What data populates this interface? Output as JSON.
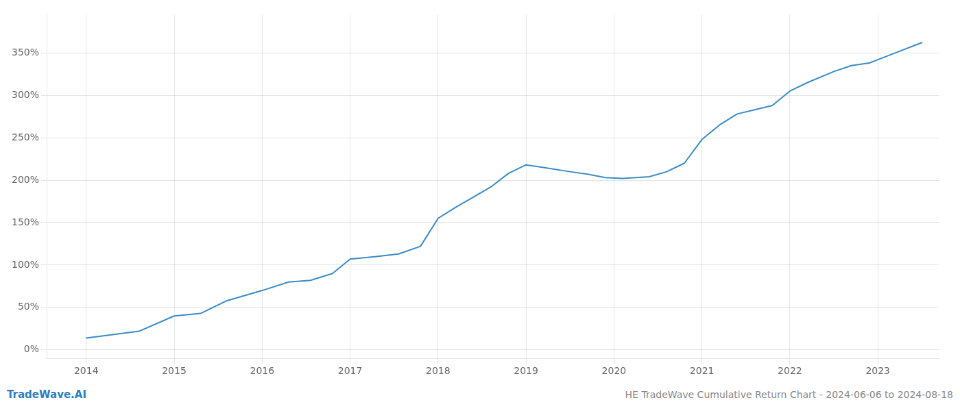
{
  "chart_data": {
    "type": "line",
    "title": "HE TradeWave Cumulative Return Chart - 2024-06-06 to 2024-08-18",
    "annotations": [
      "TradeWave.AI"
    ],
    "x": [
      2014.0,
      2014.3,
      2014.6,
      2015.0,
      2015.3,
      2015.6,
      2016.0,
      2016.3,
      2016.55,
      2016.8,
      2017.0,
      2017.3,
      2017.55,
      2017.8,
      2018.0,
      2018.2,
      2018.4,
      2018.6,
      2018.8,
      2019.0,
      2019.2,
      2019.5,
      2019.7,
      2019.9,
      2020.1,
      2020.4,
      2020.6,
      2020.8,
      2021.0,
      2021.2,
      2021.4,
      2021.6,
      2021.8,
      2022.0,
      2022.2,
      2022.5,
      2022.7,
      2022.9,
      2023.0,
      2023.2,
      2023.5
    ],
    "values": [
      14,
      18,
      22,
      40,
      43,
      58,
      70,
      80,
      82,
      90,
      107,
      110,
      113,
      122,
      155,
      168,
      180,
      192,
      208,
      218,
      215,
      210,
      207,
      203,
      202,
      204,
      210,
      220,
      248,
      265,
      278,
      283,
      288,
      305,
      315,
      328,
      335,
      338,
      342,
      350,
      362
    ],
    "color": "#3a8bc8",
    "xlim": [
      2013.55,
      2023.7
    ],
    "ylim": [
      -10,
      395
    ],
    "xticks": [
      2014,
      2015,
      2016,
      2017,
      2018,
      2019,
      2020,
      2021,
      2022,
      2023
    ],
    "yticks": [
      {
        "value": 0,
        "label": "0%"
      },
      {
        "value": 50,
        "label": "50%"
      },
      {
        "value": 100,
        "label": "100%"
      },
      {
        "value": 150,
        "label": "150%"
      },
      {
        "value": 200,
        "label": "200%"
      },
      {
        "value": 250,
        "label": "250%"
      },
      {
        "value": 300,
        "label": "300%"
      },
      {
        "value": 350,
        "label": "350%"
      }
    ],
    "grid": true
  }
}
